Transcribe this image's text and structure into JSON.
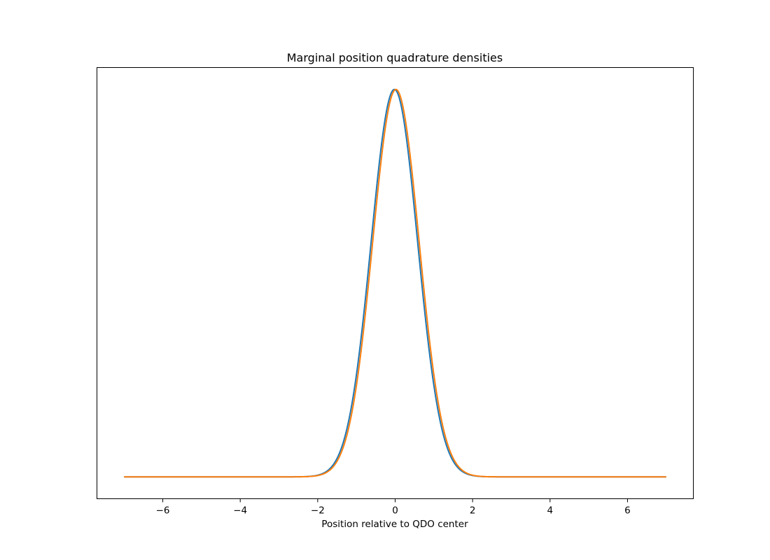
{
  "chart_data": {
    "type": "line",
    "title": "Marginal position quadrature densities",
    "xlabel": "Position relative to QDO center",
    "ylabel": "",
    "xlim": [
      -7.7,
      7.7
    ],
    "ylim": [
      -0.0565,
      1.0565
    ],
    "x_ticks": [
      -6,
      -4,
      -2,
      0,
      2,
      4,
      6
    ],
    "x_tick_labels": [
      "−6",
      "−4",
      "−2",
      "0",
      "2",
      "4",
      "6"
    ],
    "y_ticks_visible": false,
    "grid": false,
    "legend": false,
    "series": [
      {
        "color": "#1f77b4",
        "x_range": [
          -7,
          7
        ],
        "shape": "gaussian",
        "mean": -0.02,
        "std": 0.6,
        "peak": 1.0,
        "baseline": 0.0
      },
      {
        "color": "#ff7f0e",
        "x_range": [
          -7,
          7
        ],
        "shape": "gaussian",
        "mean": 0.02,
        "std": 0.6,
        "peak": 1.0,
        "baseline": 0.0
      }
    ]
  }
}
